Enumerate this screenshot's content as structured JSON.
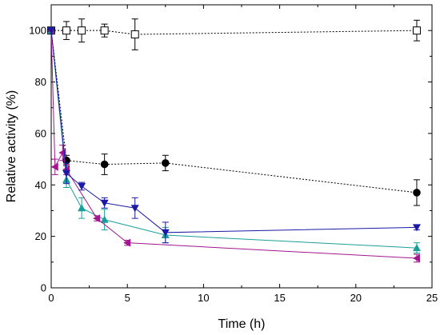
{
  "chart_data": {
    "type": "scatter",
    "title": "",
    "xlabel": "Time (h)",
    "ylabel": "Relative activity (%)",
    "xlim": [
      0,
      25
    ],
    "ylim": [
      0,
      110
    ],
    "xticks": [
      0,
      5,
      10,
      15,
      20,
      25
    ],
    "yticks": [
      0,
      20,
      40,
      60,
      80,
      100
    ],
    "grid": false,
    "legend": "none",
    "series": [
      {
        "marker": "open-square",
        "color": "#000000",
        "line": "dotted",
        "points": [
          {
            "x": 0,
            "y": 100,
            "err": 0
          },
          {
            "x": 1,
            "y": 100,
            "err": 3.5
          },
          {
            "x": 2,
            "y": 100,
            "err": 4.5
          },
          {
            "x": 3.5,
            "y": 100,
            "err": 2.5
          },
          {
            "x": 5.5,
            "y": 98.5,
            "err": 6
          },
          {
            "x": 24,
            "y": 100,
            "err": 4
          }
        ]
      },
      {
        "marker": "filled-circle",
        "color": "#000000",
        "line": "dotted",
        "points": [
          {
            "x": 0,
            "y": 100,
            "err": 0
          },
          {
            "x": 1,
            "y": 49.5,
            "err": 2
          },
          {
            "x": 3.5,
            "y": 48,
            "err": 4
          },
          {
            "x": 7.5,
            "y": 48.5,
            "err": 3
          },
          {
            "x": 24,
            "y": 37,
            "err": 5
          }
        ]
      },
      {
        "marker": "down-triangle",
        "color": "#1a1aa6",
        "line": "solid",
        "points": [
          {
            "x": 0,
            "y": 100,
            "err": 0
          },
          {
            "x": 1,
            "y": 44.5,
            "err": 4
          },
          {
            "x": 2,
            "y": 39.5,
            "err": 1.5
          },
          {
            "x": 3.5,
            "y": 33,
            "err": 2
          },
          {
            "x": 5.5,
            "y": 31,
            "err": 4
          },
          {
            "x": 7.5,
            "y": 21.5,
            "err": 4
          },
          {
            "x": 24,
            "y": 23.5,
            "err": 1
          }
        ]
      },
      {
        "marker": "up-triangle",
        "color": "#1a9e9a",
        "line": "solid",
        "points": [
          {
            "x": 0,
            "y": 100,
            "err": 0
          },
          {
            "x": 1,
            "y": 42,
            "err": 3
          },
          {
            "x": 2,
            "y": 31,
            "err": 4
          },
          {
            "x": 3.5,
            "y": 26.5,
            "err": 4
          },
          {
            "x": 7.5,
            "y": 20.5,
            "err": 3
          },
          {
            "x": 24,
            "y": 15.5,
            "err": 2
          }
        ]
      },
      {
        "marker": "left-triangle",
        "color": "#a3158f",
        "line": "solid",
        "points": [
          {
            "x": 0,
            "y": 100,
            "err": 0
          },
          {
            "x": 0.25,
            "y": 47,
            "err": 3
          },
          {
            "x": 0.75,
            "y": 52.5,
            "err": 3
          },
          {
            "x": 1,
            "y": 46,
            "err": 2
          },
          {
            "x": 3,
            "y": 27,
            "err": 1
          },
          {
            "x": 5,
            "y": 17.5,
            "err": 1
          },
          {
            "x": 24,
            "y": 11.5,
            "err": 1.5
          }
        ]
      }
    ]
  }
}
